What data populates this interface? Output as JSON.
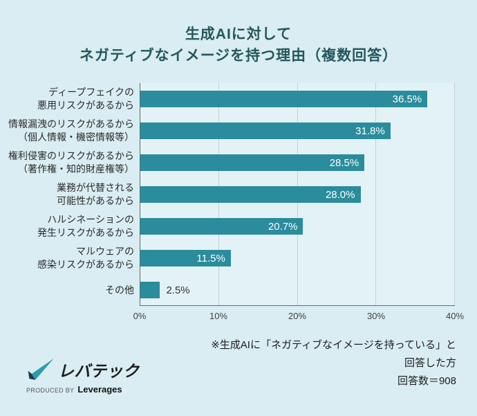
{
  "header": {
    "title_line1": "生成AIに対して",
    "title_line2": "ネガティブなイメージを持つ理由（複数回答）"
  },
  "chart_data": {
    "type": "bar",
    "orientation": "horizontal",
    "title": "生成AIに対して ネガティブなイメージを持つ理由（複数回答）",
    "categories": [
      "ディープフェイクの悪用リスクがあるから",
      "情報漏洩のリスクがあるから（個人情報・機密情報等）",
      "権利侵害のリスクがあるから（著作権・知的財産権等）",
      "業務が代替される可能性があるから",
      "ハルシネーションの発生リスクがあるから",
      "マルウェアの感染リスクがあるから",
      "その他"
    ],
    "category_label_lines": [
      [
        "ディープフェイクの",
        "悪用リスクがあるから"
      ],
      [
        "情報漏洩のリスクがあるから",
        "（個人情報・機密情報等）"
      ],
      [
        "権利侵害のリスクがあるから",
        "（著作権・知的財産権等）"
      ],
      [
        "業務が代替される",
        "可能性があるから"
      ],
      [
        "ハルシネーションの",
        "発生リスクがあるから"
      ],
      [
        "マルウェアの",
        "感染リスクがあるから"
      ],
      [
        "その他"
      ]
    ],
    "values": [
      36.5,
      31.8,
      28.5,
      28.0,
      20.7,
      11.5,
      2.5
    ],
    "value_labels": [
      "36.5%",
      "31.8%",
      "28.5%",
      "28.0%",
      "20.7%",
      "11.5%",
      "2.5%"
    ],
    "xlim": [
      0,
      40
    ],
    "x_ticks": [
      "0%",
      "10%",
      "20%",
      "30%",
      "40%"
    ],
    "grid": true,
    "legend": "none",
    "bar_color": "#2a8c9c"
  },
  "footer": {
    "note_lines": [
      "※生成AIに「ネガティブなイメージを持っている」と",
      "回答した方",
      "回答数＝908"
    ],
    "logo": {
      "brand": "レバテック",
      "produced_by": "PRODUCED BY",
      "company": "Leverages"
    }
  },
  "colors": {
    "background": "#d9edf2",
    "plot_background": "#e3f2f6",
    "bar": "#2a8c9c",
    "title": "#23575c",
    "axis": "#5d686c",
    "gridline": "#c6ced2",
    "value_inside": "#ffffff",
    "value_outside": "#333333"
  }
}
